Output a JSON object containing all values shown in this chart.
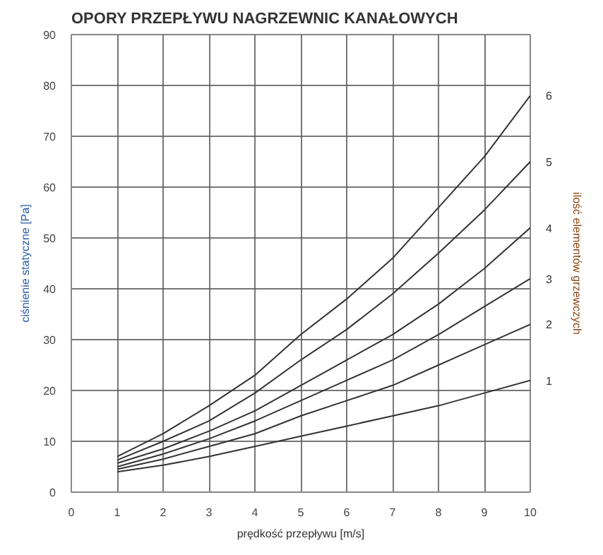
{
  "chart_data": {
    "type": "line",
    "title": "OPORY PRZEPŁYWU NAGRZEWNIC KANAŁOWYCH",
    "xlabel": "prędkość przepływu [m/s]",
    "ylabel": "ciśnienie statyczne [Pa]",
    "y2label": "ilość elementów grzewczych",
    "x": [
      1,
      2,
      3,
      4,
      5,
      6,
      7,
      8,
      9,
      10
    ],
    "series": [
      {
        "name": "1",
        "color": "#333333",
        "values": [
          4,
          5.3,
          7,
          9,
          11,
          13,
          15,
          17,
          19.5,
          22
        ]
      },
      {
        "name": "2",
        "color": "#333333",
        "values": [
          4.5,
          6.5,
          9,
          11.5,
          15,
          18,
          21,
          25,
          29,
          33
        ]
      },
      {
        "name": "3",
        "color": "#333333",
        "values": [
          5,
          7.5,
          10.5,
          14,
          18,
          22,
          26,
          31,
          36.5,
          42
        ]
      },
      {
        "name": "4",
        "color": "#333333",
        "values": [
          5.7,
          8.5,
          12,
          16,
          21,
          26,
          31,
          37,
          44,
          52
        ]
      },
      {
        "name": "5",
        "color": "#333333",
        "values": [
          6.3,
          10,
          14,
          19.5,
          26,
          32,
          39,
          47,
          55.5,
          65
        ]
      },
      {
        "name": "6",
        "color": "#333333",
        "values": [
          7,
          11.5,
          17,
          23,
          31,
          38,
          46,
          56,
          66,
          78
        ]
      }
    ],
    "xlim": [
      0,
      10
    ],
    "ylim": [
      0,
      90
    ],
    "xticks": [
      0,
      1,
      2,
      3,
      4,
      5,
      6,
      7,
      8,
      9,
      10
    ],
    "yticks": [
      0,
      10,
      20,
      30,
      40,
      50,
      60,
      70,
      80,
      90
    ],
    "grid": true,
    "marker": "none",
    "line_style": "solid"
  }
}
